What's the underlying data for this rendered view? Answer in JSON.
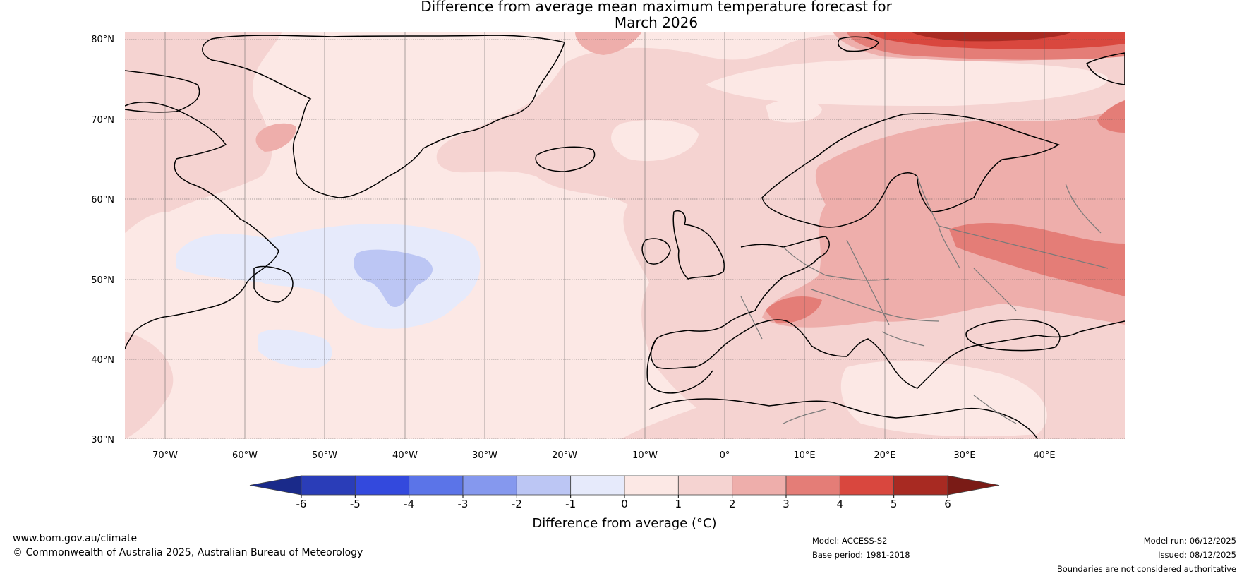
{
  "title": {
    "line1": "Difference from average mean maximum temperature forecast for",
    "line2": "March 2026"
  },
  "map": {
    "latitude_labels": [
      "80°N",
      "70°N",
      "60°N",
      "50°N",
      "40°N",
      "30°N"
    ],
    "longitude_labels": [
      "70°W",
      "60°W",
      "50°W",
      "40°W",
      "30°W",
      "20°W",
      "10°W",
      "0°",
      "10°E",
      "20°E",
      "30°E",
      "40°E"
    ]
  },
  "colorbar": {
    "title": "Difference from average (°C)",
    "tick_labels": [
      "-6",
      "-5",
      "-4",
      "-3",
      "-2",
      "-1",
      "0",
      "1",
      "2",
      "3",
      "4",
      "5",
      "6"
    ],
    "colors": {
      "extend_low": "#1a2a8a",
      "bins": [
        "#2a3db8",
        "#3349dd",
        "#5b74e8",
        "#8598ee",
        "#bcc6f4",
        "#e6eafb",
        "#fce8e5",
        "#f5d3d1",
        "#eeaeab",
        "#e47d77",
        "#d9473e",
        "#a82a22"
      ],
      "extend_high": "#7a1b16"
    }
  },
  "footer": {
    "website": "www.bom.gov.au/climate",
    "copyright": "© Commonwealth of Australia 2025, Australian Bureau of Meteorology",
    "model": "Model: ACCESS-S2",
    "base_period": "Base period: 1981-2018",
    "model_run": "Model run: 06/12/2025",
    "issued": "Issued: 08/12/2025",
    "disclaimer": "Boundaries are not considered authoritative"
  }
}
